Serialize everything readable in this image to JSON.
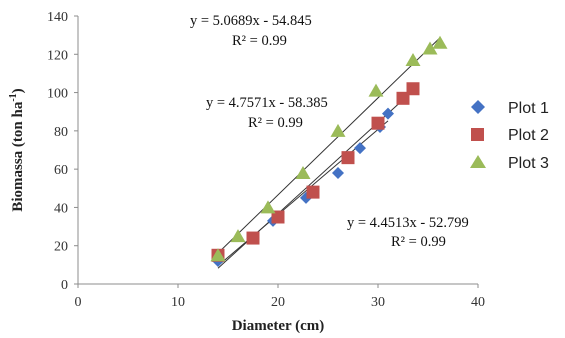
{
  "chart_data": {
    "type": "scatter",
    "xlabel": "Diameter (cm)",
    "ylabel_main": "Biomassa (ton ha",
    "ylabel_sup": "-1",
    "ylabel_close": ")",
    "xlim": [
      0,
      40
    ],
    "ylim": [
      0,
      140
    ],
    "xticks": [
      0,
      10,
      20,
      30,
      40
    ],
    "yticks": [
      0,
      20,
      40,
      60,
      80,
      100,
      120,
      140
    ],
    "grid": false,
    "legend_position": "right",
    "series": [
      {
        "name": "Plot 1",
        "marker": "diamond",
        "color": "#4472C4",
        "points": [
          [
            14,
            12
          ],
          [
            19.5,
            33
          ],
          [
            22.8,
            45
          ],
          [
            26,
            58
          ],
          [
            28.2,
            71
          ],
          [
            30.2,
            82
          ],
          [
            31,
            89
          ]
        ],
        "trend": {
          "slope": 4.4513,
          "intercept": -52.799,
          "x_range": [
            14,
            31
          ]
        },
        "equation": "y = 4.4513x - 52.799",
        "r2": "R² = 0.99"
      },
      {
        "name": "Plot 2",
        "marker": "square",
        "color": "#C0504D",
        "points": [
          [
            14,
            15
          ],
          [
            17.5,
            24
          ],
          [
            20,
            35
          ],
          [
            23.5,
            48
          ],
          [
            27,
            66
          ],
          [
            30,
            84
          ],
          [
            32.5,
            97
          ],
          [
            33.5,
            102
          ]
        ],
        "trend": {
          "slope": 4.7571,
          "intercept": -58.385,
          "x_range": [
            14,
            33.5
          ]
        },
        "equation": "y = 4.7571x - 58.385",
        "r2": "R² = 0.99"
      },
      {
        "name": "Plot 3",
        "marker": "triangle",
        "color": "#9BBB59",
        "points": [
          [
            14,
            15
          ],
          [
            16,
            25
          ],
          [
            19,
            40
          ],
          [
            22.5,
            58
          ],
          [
            26,
            80
          ],
          [
            29.8,
            101
          ],
          [
            33.5,
            117
          ],
          [
            35.2,
            123
          ],
          [
            36.2,
            126
          ]
        ],
        "trend": {
          "slope": 5.0689,
          "intercept": -54.845,
          "x_range": [
            14,
            36.2
          ]
        },
        "equation": "y = 5.0689x - 54.845",
        "r2": "R² = 0.99"
      }
    ]
  }
}
